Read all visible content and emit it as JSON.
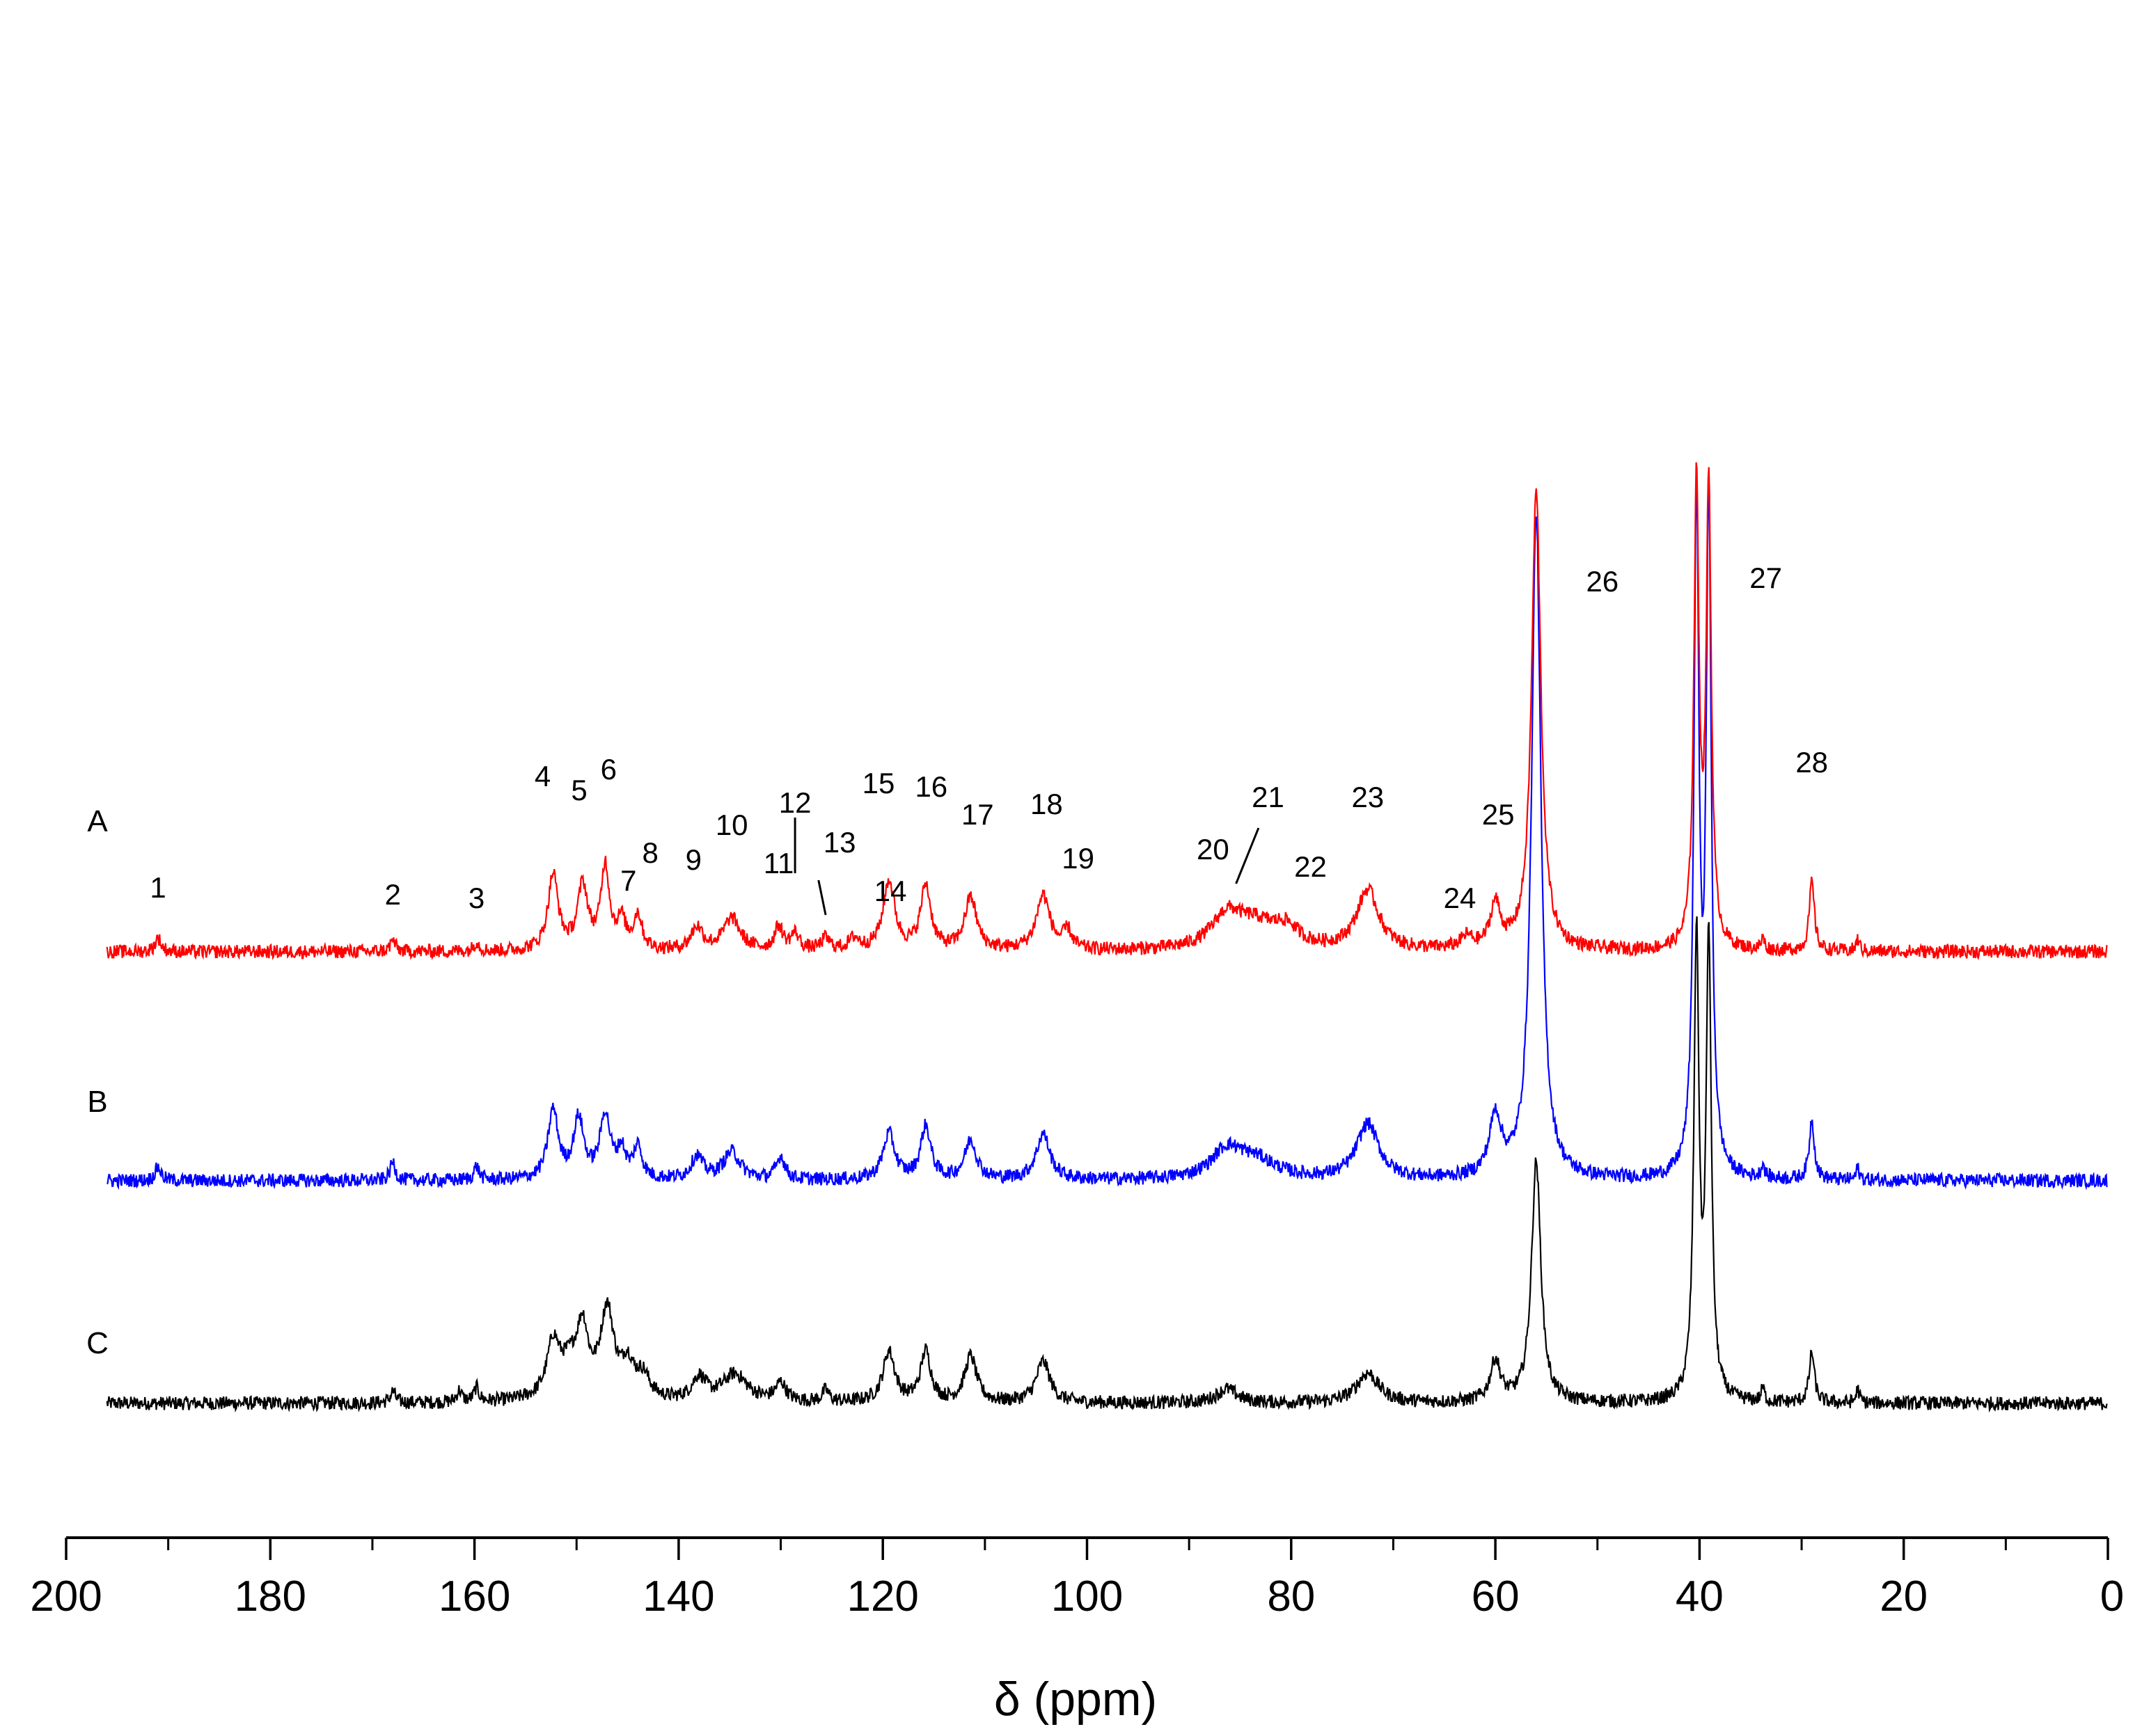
{
  "chart_data": {
    "type": "line",
    "title": "",
    "xlabel": "δ (ppm)",
    "ylabel": "",
    "xlim": [
      200,
      0
    ],
    "x_reversed": true,
    "grid": false,
    "x_ticks": [
      "200",
      "180",
      "160",
      "140",
      "120",
      "100",
      "80",
      "60",
      "40",
      "20",
      "0"
    ],
    "x_tick_values": [
      200,
      180,
      160,
      140,
      120,
      100,
      80,
      60,
      40,
      20,
      0
    ],
    "series": [
      {
        "name": "A",
        "color": "#ff0000",
        "offset": 2.0,
        "peaks": [
          {
            "ppm": 191.0,
            "height": 0.06,
            "width": 0.35
          },
          {
            "ppm": 168.0,
            "height": 0.05,
            "width": 0.3
          },
          {
            "ppm": 159.8,
            "height": 0.04,
            "width": 0.3
          },
          {
            "ppm": 152.3,
            "height": 0.33,
            "width": 0.6
          },
          {
            "ppm": 149.4,
            "height": 0.28,
            "width": 0.6
          },
          {
            "ppm": 147.2,
            "height": 0.36,
            "width": 0.5
          },
          {
            "ppm": 145.6,
            "height": 0.12,
            "width": 0.5
          },
          {
            "ppm": 144.0,
            "height": 0.15,
            "width": 0.5
          },
          {
            "ppm": 138.2,
            "height": 0.1,
            "width": 0.7
          },
          {
            "ppm": 134.8,
            "height": 0.14,
            "width": 1.0
          },
          {
            "ppm": 130.2,
            "height": 0.1,
            "width": 0.5
          },
          {
            "ppm": 128.6,
            "height": 0.07,
            "width": 0.5
          },
          {
            "ppm": 125.6,
            "height": 0.05,
            "width": 0.5
          },
          {
            "ppm": 122.8,
            "height": 0.05,
            "width": 0.6
          },
          {
            "ppm": 119.4,
            "height": 0.3,
            "width": 0.7
          },
          {
            "ppm": 115.8,
            "height": 0.28,
            "width": 0.6
          },
          {
            "ppm": 111.4,
            "height": 0.23,
            "width": 0.7
          },
          {
            "ppm": 104.3,
            "height": 0.24,
            "width": 0.8
          },
          {
            "ppm": 101.9,
            "height": 0.08,
            "width": 0.5
          },
          {
            "ppm": 86.3,
            "height": 0.14,
            "width": 1.8
          },
          {
            "ppm": 83.5,
            "height": 0.1,
            "width": 2.5
          },
          {
            "ppm": 80.5,
            "height": 0.08,
            "width": 1.5
          },
          {
            "ppm": 72.5,
            "height": 0.26,
            "width": 1.3
          },
          {
            "ppm": 62.8,
            "height": 0.05,
            "width": 0.7
          },
          {
            "ppm": 60.0,
            "height": 0.19,
            "width": 0.6
          },
          {
            "ppm": 56.0,
            "height": 2.0,
            "width": 0.55
          },
          {
            "ppm": 40.3,
            "height": 2.0,
            "width": 0.3
          },
          {
            "ppm": 39.1,
            "height": 2.0,
            "width": 0.3
          },
          {
            "ppm": 33.8,
            "height": 0.05,
            "width": 0.2
          },
          {
            "ppm": 29.0,
            "height": 0.3,
            "width": 0.3
          },
          {
            "ppm": 24.5,
            "height": 0.05,
            "width": 0.2
          }
        ]
      },
      {
        "name": "B",
        "color": "#0000ff",
        "offset": 1.0,
        "peaks": [
          {
            "ppm": 191.0,
            "height": 0.06,
            "width": 0.35
          },
          {
            "ppm": 168.0,
            "height": 0.08,
            "width": 0.3
          },
          {
            "ppm": 159.8,
            "height": 0.06,
            "width": 0.3
          },
          {
            "ppm": 152.3,
            "height": 0.3,
            "width": 0.6
          },
          {
            "ppm": 149.8,
            "height": 0.26,
            "width": 0.6
          },
          {
            "ppm": 147.2,
            "height": 0.28,
            "width": 0.6
          },
          {
            "ppm": 145.6,
            "height": 0.12,
            "width": 0.5
          },
          {
            "ppm": 144.0,
            "height": 0.14,
            "width": 0.5
          },
          {
            "ppm": 138.2,
            "height": 0.1,
            "width": 0.7
          },
          {
            "ppm": 134.8,
            "height": 0.12,
            "width": 1.0
          },
          {
            "ppm": 130.0,
            "height": 0.1,
            "width": 0.5
          },
          {
            "ppm": 119.4,
            "height": 0.2,
            "width": 0.7
          },
          {
            "ppm": 115.8,
            "height": 0.23,
            "width": 0.6
          },
          {
            "ppm": 111.4,
            "height": 0.17,
            "width": 0.7
          },
          {
            "ppm": 104.3,
            "height": 0.2,
            "width": 0.8
          },
          {
            "ppm": 86.3,
            "height": 0.12,
            "width": 1.8
          },
          {
            "ppm": 83.5,
            "height": 0.08,
            "width": 2.5
          },
          {
            "ppm": 72.5,
            "height": 0.24,
            "width": 1.3
          },
          {
            "ppm": 60.0,
            "height": 0.26,
            "width": 0.7
          },
          {
            "ppm": 56.0,
            "height": 2.9,
            "width": 0.55
          },
          {
            "ppm": 40.3,
            "height": 2.9,
            "width": 0.3
          },
          {
            "ppm": 39.1,
            "height": 2.9,
            "width": 0.3
          },
          {
            "ppm": 33.8,
            "height": 0.06,
            "width": 0.2
          },
          {
            "ppm": 29.0,
            "height": 0.26,
            "width": 0.3
          },
          {
            "ppm": 24.5,
            "height": 0.05,
            "width": 0.2
          }
        ]
      },
      {
        "name": "C",
        "color": "#000000",
        "offset": 0.0,
        "peaks": [
          {
            "ppm": 168.0,
            "height": 0.05,
            "width": 0.3
          },
          {
            "ppm": 161.5,
            "height": 0.05,
            "width": 0.3
          },
          {
            "ppm": 159.8,
            "height": 0.06,
            "width": 0.3
          },
          {
            "ppm": 152.3,
            "height": 0.22,
            "width": 0.7
          },
          {
            "ppm": 150.5,
            "height": 0.16,
            "width": 1.5
          },
          {
            "ppm": 149.4,
            "height": 0.24,
            "width": 0.6
          },
          {
            "ppm": 147.0,
            "height": 0.38,
            "width": 0.8
          },
          {
            "ppm": 145.0,
            "height": 0.14,
            "width": 0.7
          },
          {
            "ppm": 143.5,
            "height": 0.1,
            "width": 0.8
          },
          {
            "ppm": 138.0,
            "height": 0.1,
            "width": 0.8
          },
          {
            "ppm": 134.5,
            "height": 0.12,
            "width": 1.5
          },
          {
            "ppm": 130.0,
            "height": 0.08,
            "width": 0.6
          },
          {
            "ppm": 125.6,
            "height": 0.05,
            "width": 0.4
          },
          {
            "ppm": 119.4,
            "height": 0.22,
            "width": 0.7
          },
          {
            "ppm": 115.8,
            "height": 0.22,
            "width": 0.6
          },
          {
            "ppm": 111.4,
            "height": 0.2,
            "width": 0.7
          },
          {
            "ppm": 104.3,
            "height": 0.18,
            "width": 0.8
          },
          {
            "ppm": 86.3,
            "height": 0.06,
            "width": 1.2
          },
          {
            "ppm": 72.5,
            "height": 0.13,
            "width": 1.3
          },
          {
            "ppm": 60.0,
            "height": 0.18,
            "width": 0.6
          },
          {
            "ppm": 56.0,
            "height": 1.05,
            "width": 0.55
          },
          {
            "ppm": 40.3,
            "height": 2.0,
            "width": 0.3
          },
          {
            "ppm": 39.1,
            "height": 2.0,
            "width": 0.3
          },
          {
            "ppm": 33.8,
            "height": 0.06,
            "width": 0.2
          },
          {
            "ppm": 29.0,
            "height": 0.22,
            "width": 0.3
          },
          {
            "ppm": 24.5,
            "height": 0.06,
            "width": 0.2
          }
        ]
      }
    ],
    "peak_labels": [
      {
        "text": "1",
        "ppm": 191.0
      },
      {
        "text": "2",
        "ppm": 168.0
      },
      {
        "text": "3",
        "ppm": 159.8
      },
      {
        "text": "4",
        "ppm": 152.3
      },
      {
        "text": "5",
        "ppm": 149.4
      },
      {
        "text": "6",
        "ppm": 147.2
      },
      {
        "text": "7",
        "ppm": 145.6
      },
      {
        "text": "8",
        "ppm": 144.0
      },
      {
        "text": "9",
        "ppm": 138.2
      },
      {
        "text": "10",
        "ppm": 134.8
      },
      {
        "text": "11",
        "ppm": 130.2
      },
      {
        "text": "12",
        "ppm": 128.6
      },
      {
        "text": "13",
        "ppm": 125.6
      },
      {
        "text": "14",
        "ppm": 122.8
      },
      {
        "text": "15",
        "ppm": 119.4
      },
      {
        "text": "16",
        "ppm": 115.8
      },
      {
        "text": "17",
        "ppm": 111.4
      },
      {
        "text": "18",
        "ppm": 104.3
      },
      {
        "text": "19",
        "ppm": 101.9
      },
      {
        "text": "20",
        "ppm": 86.3
      },
      {
        "text": "21",
        "ppm": 85.0
      },
      {
        "text": "22",
        "ppm": 80.5
      },
      {
        "text": "23",
        "ppm": 72.5
      },
      {
        "text": "24",
        "ppm": 62.8
      },
      {
        "text": "25",
        "ppm": 60.0
      },
      {
        "text": "26",
        "ppm": 56.0
      },
      {
        "text": "27",
        "ppm": 39.1
      },
      {
        "text": "28",
        "ppm": 29.0
      }
    ]
  }
}
